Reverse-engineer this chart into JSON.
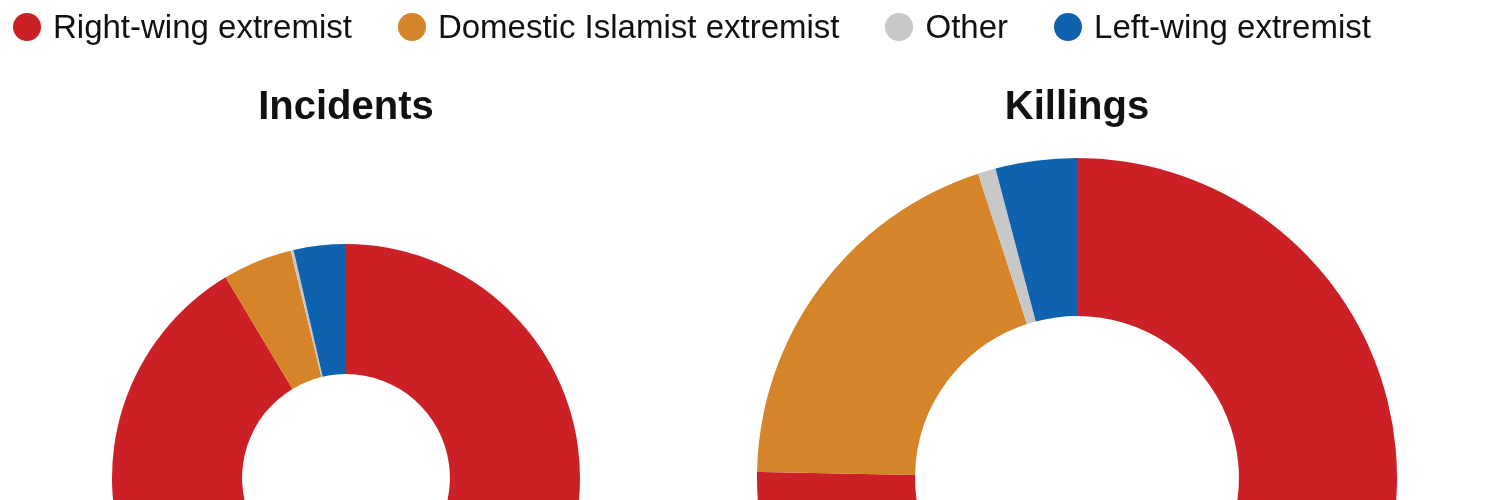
{
  "chart_data": {
    "type": "donut",
    "categories": [
      "Right-wing extremist",
      "Domestic Islamist extremist",
      "Other",
      "Left-wing extremist"
    ],
    "colors": [
      "#cc2027",
      "#d5842a",
      "#c8c8c8",
      "#0f62ae"
    ],
    "legend": "top",
    "series": [
      {
        "name": "Incidents",
        "values": [
          91.4,
          4.8,
          0.2,
          3.6
        ]
      },
      {
        "name": "Killings",
        "values": [
          75.3,
          19.7,
          0.9,
          4.1
        ]
      }
    ]
  }
}
